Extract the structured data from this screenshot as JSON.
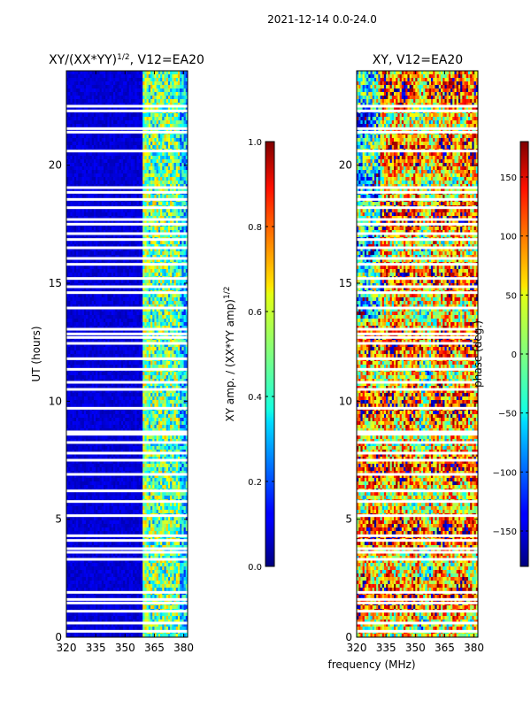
{
  "suptitle": "2021-12-14 0.0-24.0",
  "chart_data": [
    {
      "type": "heatmap",
      "title": "XY/(XX*YY)^1/2, V12=EA20",
      "title_main": "XY/(XX*YY)",
      "title_exp": "1/2",
      "title_tail": ", V12=EA20",
      "xlabel": "frequency (MHz)",
      "ylabel": "UT (hours)",
      "x_ticks": [
        320,
        335,
        350,
        365,
        380
      ],
      "y_ticks": [
        0,
        5,
        10,
        15,
        20
      ],
      "xlim": [
        320,
        382
      ],
      "ylim": [
        0,
        24
      ],
      "colorbar": {
        "label_main": "XY amp. / (XX*YY amp)",
        "label_exp": "1/2",
        "range": [
          0.0,
          1.0
        ],
        "ticks": [
          "0.0",
          "0.2",
          "0.4",
          "0.6",
          "0.8",
          "1.0"
        ],
        "colormap": "jet"
      }
    },
    {
      "type": "heatmap",
      "title": "XY, V12=EA20",
      "xlabel": "frequency (MHz)",
      "x_ticks": [
        320,
        335,
        350,
        365,
        380
      ],
      "y_ticks": [
        0,
        5,
        10,
        15,
        20
      ],
      "xlim": [
        320,
        382
      ],
      "ylim": [
        0,
        24
      ],
      "colorbar": {
        "label": "phase (deg.)",
        "range": [
          -180,
          180
        ],
        "ticks": [
          "−150",
          "−100",
          "−50",
          "0",
          "50",
          "100",
          "150"
        ],
        "colormap": "jet"
      }
    }
  ],
  "flagged_times": [
    0.25,
    0.6,
    1.1,
    1.45,
    1.6,
    1.9,
    3.3,
    3.6,
    3.75,
    4.1,
    4.3,
    5.15,
    5.75,
    6.2,
    6.9,
    7.5,
    7.8,
    8.25,
    8.6,
    8.7,
    9.7,
    10.5,
    10.8,
    11.35,
    11.8,
    12.45,
    12.7,
    12.85,
    13.05,
    13.95,
    14.6,
    14.85,
    15.2,
    15.8,
    16.05,
    16.5,
    16.85,
    17.1,
    17.5,
    17.7,
    18.2,
    18.55,
    18.85,
    19.05,
    20.6,
    21.4,
    21.55,
    22.3,
    22.5
  ]
}
